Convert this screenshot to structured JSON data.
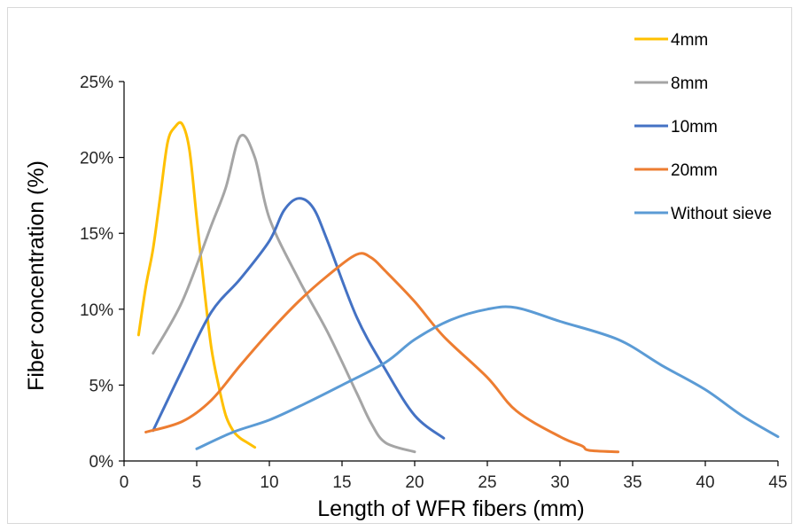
{
  "chart_data": {
    "type": "line",
    "xlabel": "Length of WFR fibers (mm)",
    "ylabel": "Fiber concentration (%)",
    "xlim": [
      0,
      45
    ],
    "ylim": [
      0,
      25
    ],
    "x_ticks": [
      0,
      5,
      10,
      15,
      20,
      25,
      30,
      35,
      40,
      45
    ],
    "y_ticks": [
      0,
      5,
      10,
      15,
      20,
      25
    ],
    "y_tick_format": "percent",
    "grid": false,
    "legend_position": "top-right",
    "series": [
      {
        "name": "4mm",
        "color": "#FFC000",
        "points": [
          [
            1,
            8.3
          ],
          [
            1.5,
            11.5
          ],
          [
            2,
            14
          ],
          [
            2.5,
            17.5
          ],
          [
            3,
            21
          ],
          [
            3.5,
            22
          ],
          [
            4,
            22.2
          ],
          [
            4.5,
            20.5
          ],
          [
            5,
            16
          ],
          [
            5.5,
            11.5
          ],
          [
            6,
            7.5
          ],
          [
            6.5,
            5
          ],
          [
            7,
            3
          ],
          [
            7.5,
            2
          ],
          [
            8,
            1.5
          ],
          [
            8.5,
            1.2
          ],
          [
            9,
            0.9
          ]
        ]
      },
      {
        "name": "8mm",
        "color": "#A5A5A5",
        "points": [
          [
            2,
            7.1
          ],
          [
            4,
            10.5
          ],
          [
            6,
            15.5
          ],
          [
            7,
            18
          ],
          [
            8,
            21.4
          ],
          [
            9,
            20
          ],
          [
            10,
            16
          ],
          [
            12,
            12
          ],
          [
            14,
            8.5
          ],
          [
            16,
            4.5
          ],
          [
            17,
            2.5
          ],
          [
            18,
            1.2
          ],
          [
            20,
            0.6
          ]
        ]
      },
      {
        "name": "10mm",
        "color": "#4472C4",
        "points": [
          [
            2,
            2
          ],
          [
            4,
            6
          ],
          [
            6,
            9.8
          ],
          [
            8,
            12
          ],
          [
            10,
            14.5
          ],
          [
            11,
            16.5
          ],
          [
            12,
            17.3
          ],
          [
            13,
            16.7
          ],
          [
            14,
            14.5
          ],
          [
            16,
            9.5
          ],
          [
            18,
            6
          ],
          [
            20,
            3
          ],
          [
            22,
            1.5
          ]
        ]
      },
      {
        "name": "20mm",
        "color": "#ED7D31",
        "points": [
          [
            1.5,
            1.9
          ],
          [
            4,
            2.6
          ],
          [
            6,
            4
          ],
          [
            8,
            6.3
          ],
          [
            10,
            8.5
          ],
          [
            12,
            10.5
          ],
          [
            14,
            12.2
          ],
          [
            16,
            13.6
          ],
          [
            17,
            13.4
          ],
          [
            18,
            12.5
          ],
          [
            20,
            10.5
          ],
          [
            22,
            8.2
          ],
          [
            25,
            5.5
          ],
          [
            27,
            3.3
          ],
          [
            30,
            1.6
          ],
          [
            31.5,
            1
          ],
          [
            32,
            0.7
          ],
          [
            34,
            0.6
          ]
        ]
      },
      {
        "name": "Without sieve",
        "color": "#5B9BD5",
        "points": [
          [
            5,
            0.8
          ],
          [
            7.5,
            1.9
          ],
          [
            10,
            2.7
          ],
          [
            12.5,
            3.8
          ],
          [
            15,
            5
          ],
          [
            18,
            6.5
          ],
          [
            20,
            8
          ],
          [
            22.5,
            9.3
          ],
          [
            25,
            10
          ],
          [
            27,
            10.1
          ],
          [
            30,
            9.2
          ],
          [
            34,
            8
          ],
          [
            37,
            6.3
          ],
          [
            40,
            4.7
          ],
          [
            42.5,
            3
          ],
          [
            45,
            1.6
          ]
        ]
      }
    ]
  }
}
